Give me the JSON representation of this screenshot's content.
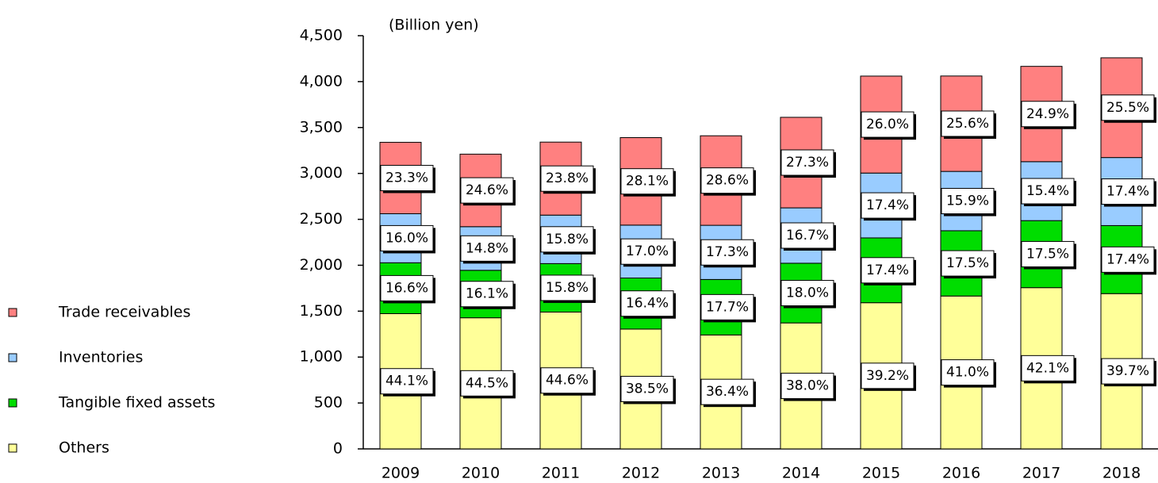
{
  "chart_data": {
    "type": "stacked_bar",
    "y_unit": "(Billion yen)",
    "categories": [
      "2009",
      "2010",
      "2011",
      "2012",
      "2013",
      "2014",
      "2015",
      "2016",
      "2017",
      "2018"
    ],
    "series": [
      {
        "name": "Others",
        "color": "#ffff99",
        "values": [
          1473,
          1428,
          1490,
          1305,
          1241,
          1372,
          1592,
          1665,
          1756,
          1691
        ],
        "shares": [
          "44.1%",
          "44.5%",
          "44.6%",
          "38.5%",
          "36.4%",
          "38.0%",
          "39.2%",
          "41.0%",
          "42.1%",
          "39.7%"
        ]
      },
      {
        "name": "Tangible fixed assets",
        "color": "#00dd00",
        "values": [
          554,
          517,
          528,
          556,
          604,
          650,
          706,
          711,
          730,
          741
        ],
        "shares": [
          "16.6%",
          "16.1%",
          "15.8%",
          "16.4%",
          "17.7%",
          "18.0%",
          "17.4%",
          "17.5%",
          "17.5%",
          "17.4%"
        ]
      },
      {
        "name": "Inventories",
        "color": "#99ccff",
        "values": [
          534,
          475,
          528,
          576,
          590,
          603,
          706,
          646,
          642,
          741
        ],
        "shares": [
          "16.0%",
          "14.8%",
          "15.8%",
          "17.0%",
          "17.3%",
          "16.7%",
          "17.4%",
          "15.9%",
          "15.4%",
          "17.4%"
        ]
      },
      {
        "name": "Trade receivables",
        "color": "#ff8080",
        "values": [
          778,
          790,
          795,
          953,
          975,
          986,
          1056,
          1039,
          1038,
          1086
        ],
        "shares": [
          "23.3%",
          "24.6%",
          "23.8%",
          "28.1%",
          "28.6%",
          "27.3%",
          "26.0%",
          "25.6%",
          "24.9%",
          "25.5%"
        ]
      }
    ],
    "ylim": [
      0,
      4500
    ],
    "yticks": [
      0,
      {
        "value": 500,
        "label": "500"
      },
      {
        "value": 1000,
        "label": "1,000"
      },
      {
        "value": 1500,
        "label": "1,500"
      },
      {
        "value": 2000,
        "label": "2,000"
      },
      {
        "value": 2500,
        "label": "2,500"
      },
      {
        "value": 3000,
        "label": "3,000"
      },
      {
        "value": 3500,
        "label": "3,500"
      },
      {
        "value": 4000,
        "label": "4,000"
      },
      {
        "value": 4500,
        "label": "4,500"
      }
    ],
    "legend": "left"
  }
}
